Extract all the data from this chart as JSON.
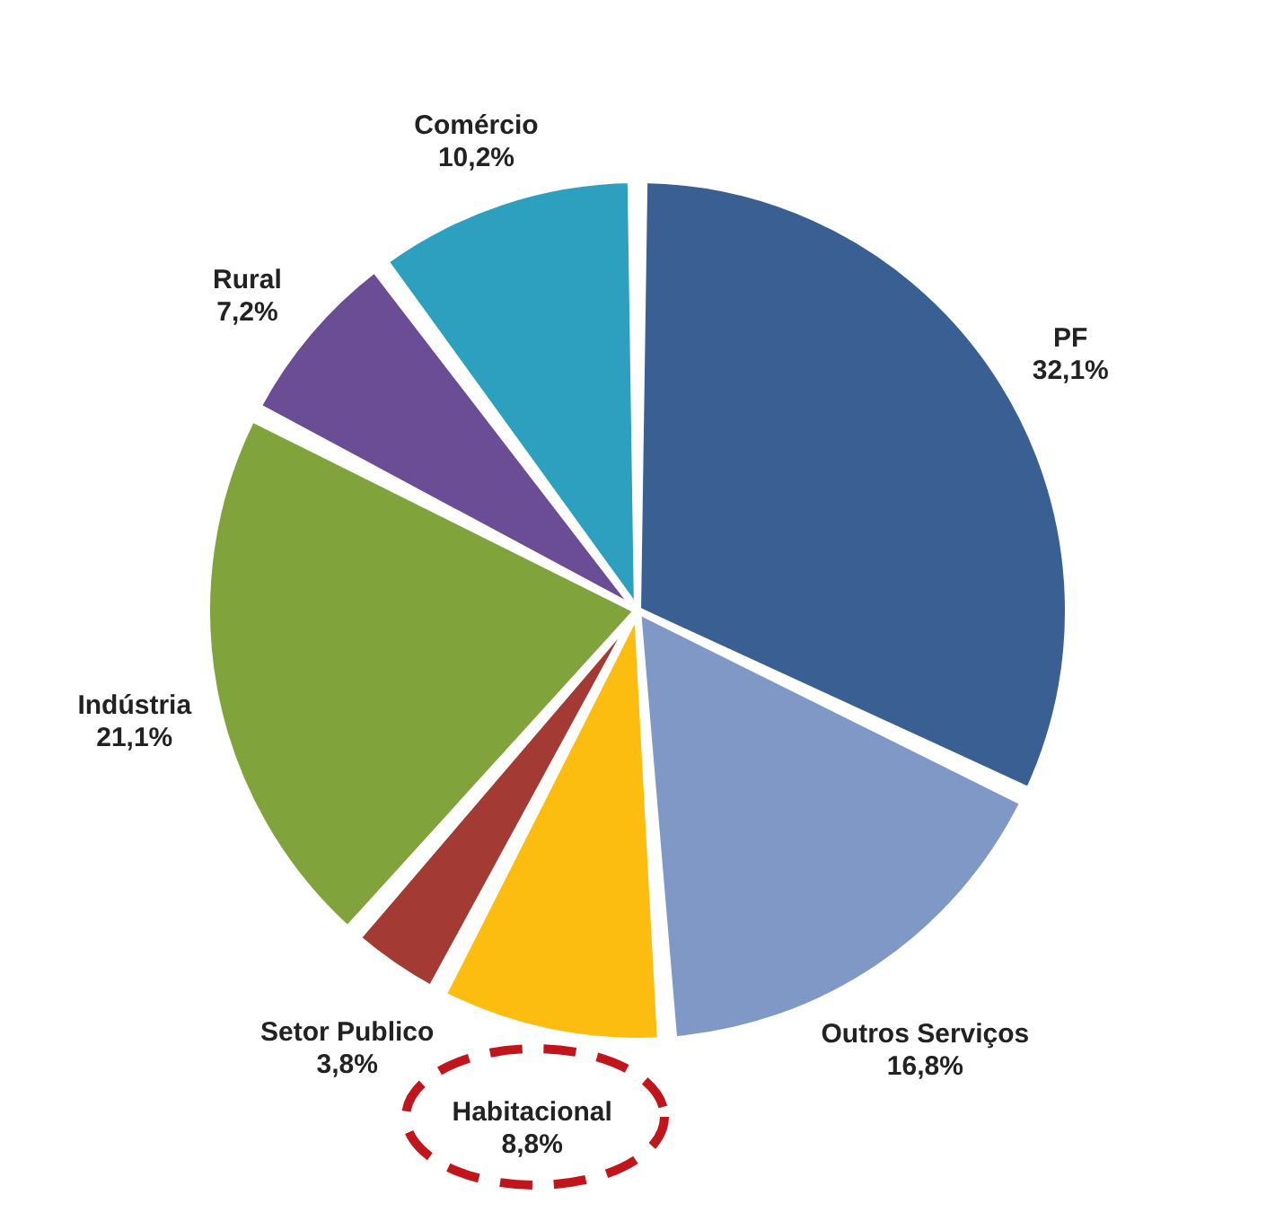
{
  "chart_data": {
    "type": "pie",
    "categories": [
      "PF",
      "Outros Serviços",
      "Habitacional",
      "Setor Publico",
      "Indústria",
      "Rural",
      "Comércio"
    ],
    "values": [
      32.1,
      16.8,
      8.8,
      3.8,
      21.1,
      7.2,
      10.2
    ],
    "value_labels": [
      "32,1%",
      "16,8%",
      "8,8%",
      "3,8%",
      "21,1%",
      "7,2%",
      "10,2%"
    ],
    "colors": [
      "#3a5f93",
      "#7f98c6",
      "#fdbd10",
      "#a33a33",
      "#80a33c",
      "#6a4d94",
      "#2ea0bf"
    ]
  }
}
